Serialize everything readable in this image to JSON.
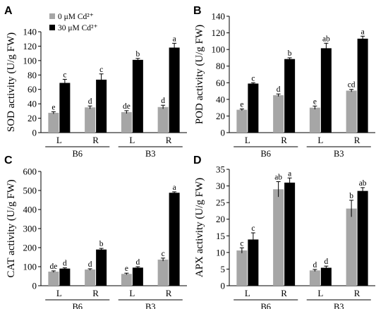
{
  "chart_data": [
    {
      "type": "bar",
      "panel_label": "A",
      "ylabel": "SOD activity (U/g FW)",
      "ylim": [
        0,
        140
      ],
      "yticks": [
        "0",
        "20",
        "40",
        "60",
        "80",
        "100",
        "120",
        "140"
      ],
      "categories": [
        "L",
        "R",
        "L",
        "R"
      ],
      "groups": [
        "B6",
        "B3"
      ],
      "legend": {
        "placement": "top-left",
        "entries": [
          "0 μM Cd²⁺",
          "30 μM Cd²⁺"
        ]
      },
      "colors": [
        "#a6a6a6",
        "#000000"
      ],
      "series": [
        {
          "values": [
            27.5,
            35,
            28.5,
            35.5
          ],
          "errors": [
            1.5,
            2,
            2,
            2.5
          ],
          "letters": [
            "e",
            "d",
            "de",
            "d"
          ]
        },
        {
          "values": [
            69,
            73.5,
            101,
            118
          ],
          "errors": [
            5,
            8,
            2,
            6
          ],
          "letters": [
            "c",
            "c",
            "b",
            "a"
          ]
        }
      ]
    },
    {
      "type": "bar",
      "panel_label": "B",
      "ylabel": "POD activity (U/g FW)",
      "ylim": [
        0,
        140
      ],
      "yticks": [
        "0",
        "20",
        "40",
        "60",
        "80",
        "100",
        "120",
        "140"
      ],
      "categories": [
        "L",
        "R",
        "L",
        "R"
      ],
      "groups": [
        "B6",
        "B3"
      ],
      "colors": [
        "#a6a6a6",
        "#000000"
      ],
      "series": [
        {
          "values": [
            27.5,
            45,
            30,
            50.5
          ],
          "errors": [
            1,
            1.5,
            2,
            1.5
          ],
          "letters": [
            "e",
            "d",
            "e",
            "cd"
          ]
        },
        {
          "values": [
            59,
            88.5,
            101.5,
            113
          ],
          "errors": [
            1,
            1.5,
            6,
            3
          ],
          "letters": [
            "c",
            "b",
            "ab",
            "a"
          ]
        }
      ]
    },
    {
      "type": "bar",
      "panel_label": "C",
      "ylabel": "CAT activity (U/g FW)",
      "ylim": [
        0,
        600
      ],
      "yticks": [
        "0",
        "100",
        "200",
        "300",
        "400",
        "500",
        "600"
      ],
      "categories": [
        "L",
        "R",
        "L",
        "R"
      ],
      "groups": [
        "B6",
        "B3"
      ],
      "colors": [
        "#a6a6a6",
        "#000000"
      ],
      "series": [
        {
          "values": [
            74,
            85,
            62,
            137
          ],
          "errors": [
            4,
            4,
            4,
            8
          ],
          "letters": [
            "de",
            "d",
            "e",
            "c"
          ]
        },
        {
          "values": [
            90,
            190,
            95,
            488
          ],
          "errors": [
            4,
            6,
            5,
            5
          ],
          "letters": [
            "d",
            "b",
            "d",
            "a"
          ]
        }
      ]
    },
    {
      "type": "bar",
      "panel_label": "D",
      "ylabel": "APX activity (U/g FW)",
      "ylim": [
        0,
        35
      ],
      "yticks": [
        "0",
        "5",
        "10",
        "15",
        "20",
        "25",
        "30",
        "35"
      ],
      "categories": [
        "L",
        "R",
        "L",
        "R"
      ],
      "groups": [
        "B6",
        "B3"
      ],
      "colors": [
        "#a6a6a6",
        "#000000"
      ],
      "series": [
        {
          "values": [
            10.6,
            29,
            4.6,
            23.2
          ],
          "errors": [
            0.8,
            2.3,
            0.3,
            2.5
          ],
          "letters": [
            "c",
            "ab",
            "d",
            "b"
          ]
        },
        {
          "values": [
            13.9,
            31,
            5.4,
            28.5
          ],
          "errors": [
            2,
            1.4,
            0.5,
            1
          ],
          "letters": [
            "c",
            "a",
            "d",
            "ab"
          ]
        }
      ]
    }
  ]
}
